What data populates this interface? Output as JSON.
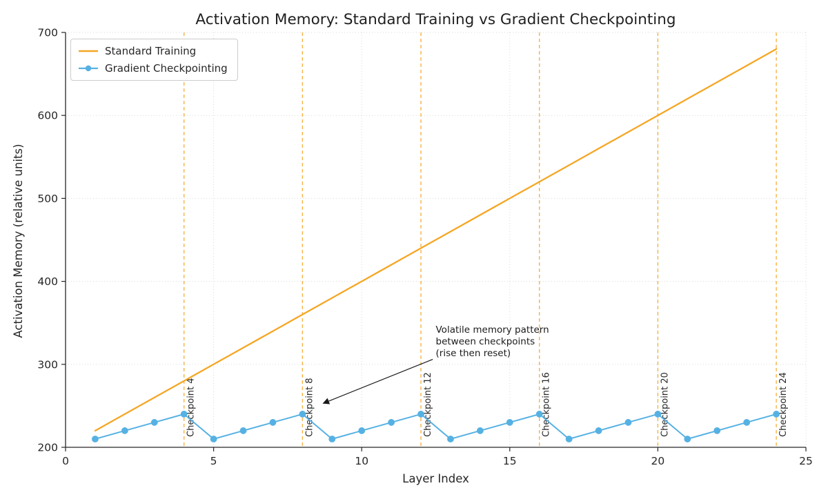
{
  "chart_data": {
    "type": "line",
    "title": "Activation Memory: Standard Training vs Gradient Checkpointing",
    "xlabel": "Layer Index",
    "ylabel": "Activation Memory (relative units)",
    "xlim": [
      0,
      25
    ],
    "ylim": [
      200,
      700
    ],
    "xticks": [
      0,
      5,
      10,
      15,
      20,
      25
    ],
    "yticks": [
      200,
      300,
      400,
      500,
      600,
      700
    ],
    "grid": "dotted",
    "legend_position": "upper left",
    "x": [
      1,
      2,
      3,
      4,
      5,
      6,
      7,
      8,
      9,
      10,
      11,
      12,
      13,
      14,
      15,
      16,
      17,
      18,
      19,
      20,
      21,
      22,
      23,
      24
    ],
    "series": [
      {
        "name": "Standard Training",
        "color": "#F5A623",
        "marker": "none",
        "values": [
          220,
          240,
          260,
          280,
          300,
          320,
          340,
          360,
          380,
          400,
          420,
          440,
          460,
          480,
          500,
          520,
          540,
          560,
          580,
          600,
          620,
          640,
          660,
          680
        ]
      },
      {
        "name": "Gradient Checkpointing",
        "color": "#56B1E3",
        "marker": "circle",
        "values": [
          210,
          220,
          230,
          240,
          210,
          220,
          230,
          240,
          210,
          220,
          230,
          240,
          210,
          220,
          230,
          240,
          210,
          220,
          230,
          240,
          210,
          220,
          230,
          240
        ]
      }
    ],
    "checkpoints": {
      "color": "#F5A623",
      "xs": [
        4,
        8,
        12,
        16,
        20,
        24
      ],
      "labels": [
        "Checkpoint 4",
        "Checkpoint 8",
        "Checkpoint 12",
        "Checkpoint 16",
        "Checkpoint 20",
        "Checkpoint 24"
      ]
    },
    "annotation": {
      "lines": [
        "Volatile memory pattern",
        "between checkpoints",
        "(rise then reset)"
      ],
      "text_x": 12.5,
      "text_y": 338,
      "arrow_from": [
        12.4,
        306
      ],
      "arrow_to": [
        8.7,
        253
      ],
      "color": "#1a1a1a"
    },
    "text_color": "#262626",
    "grid_color": "#bbbbbb"
  }
}
